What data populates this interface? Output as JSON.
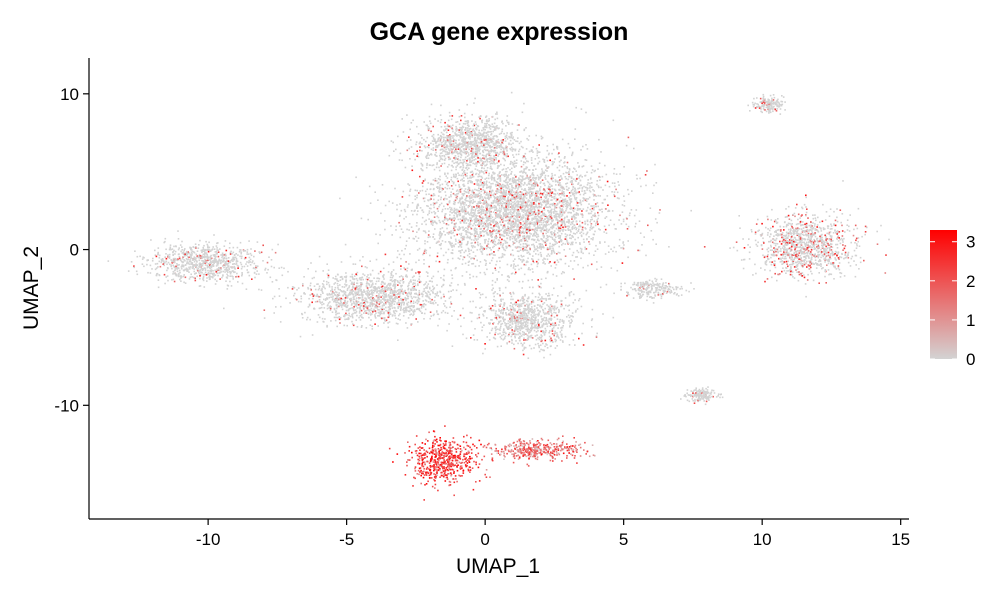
{
  "chart_data": {
    "type": "scatter",
    "title": "GCA gene expression",
    "xlabel": "UMAP_1",
    "ylabel": "UMAP_2",
    "xlim": [
      -14.3,
      15.3
    ],
    "ylim": [
      -17.3,
      12.3
    ],
    "x_ticks": [
      -10,
      -5,
      0,
      5,
      10,
      15
    ],
    "x_tick_labels": [
      "-10",
      "-5",
      "0",
      "5",
      "10",
      "15"
    ],
    "y_ticks": [
      -10,
      0,
      10
    ],
    "y_tick_labels": [
      "-10",
      "0",
      "10"
    ],
    "grid": false,
    "legend": {
      "placement": "right",
      "type": "colorbar",
      "range": [
        0,
        3.3
      ],
      "ticks": [
        0,
        1,
        2,
        3
      ],
      "tick_labels": [
        "0",
        "1",
        "2",
        "3"
      ],
      "colors": {
        "low": "#d3d3d3",
        "high": "#ff0000"
      }
    },
    "point_color_low": "#d3d3d3",
    "point_color_high": "#ff0000",
    "clusters": [
      {
        "center": [
          -10.2,
          -0.8
        ],
        "spread": [
          1.9,
          1.15
        ],
        "mean_expression": 0.12
      },
      {
        "center": [
          -4.0,
          -3.0
        ],
        "spread": [
          2.4,
          1.5
        ],
        "mean_expression": 0.12
      },
      {
        "center": [
          1.0,
          2.5
        ],
        "spread": [
          3.2,
          3.2
        ],
        "mean_expression": 0.15
      },
      {
        "center": [
          -0.6,
          6.8
        ],
        "spread": [
          1.7,
          1.6
        ],
        "mean_expression": 0.12
      },
      {
        "center": [
          1.5,
          -4.5
        ],
        "spread": [
          1.5,
          1.6
        ],
        "mean_expression": 0.1
      },
      {
        "center": [
          6.0,
          -2.5
        ],
        "spread": [
          0.9,
          0.6
        ],
        "mean_expression": 0.05
      },
      {
        "center": [
          10.2,
          9.3
        ],
        "spread": [
          0.5,
          0.45
        ],
        "mean_expression": 0.05
      },
      {
        "center": [
          11.5,
          0.3
        ],
        "spread": [
          1.6,
          1.8
        ],
        "mean_expression": 0.45
      },
      {
        "center": [
          7.8,
          -9.3
        ],
        "spread": [
          0.5,
          0.35
        ],
        "mean_expression": 0.05
      },
      {
        "center": [
          -1.6,
          -13.5
        ],
        "spread": [
          1.1,
          1.3
        ],
        "mean_expression": 2.3
      },
      {
        "center": [
          1.8,
          -12.8
        ],
        "spread": [
          1.6,
          0.6
        ],
        "mean_expression": 1.5
      }
    ]
  }
}
